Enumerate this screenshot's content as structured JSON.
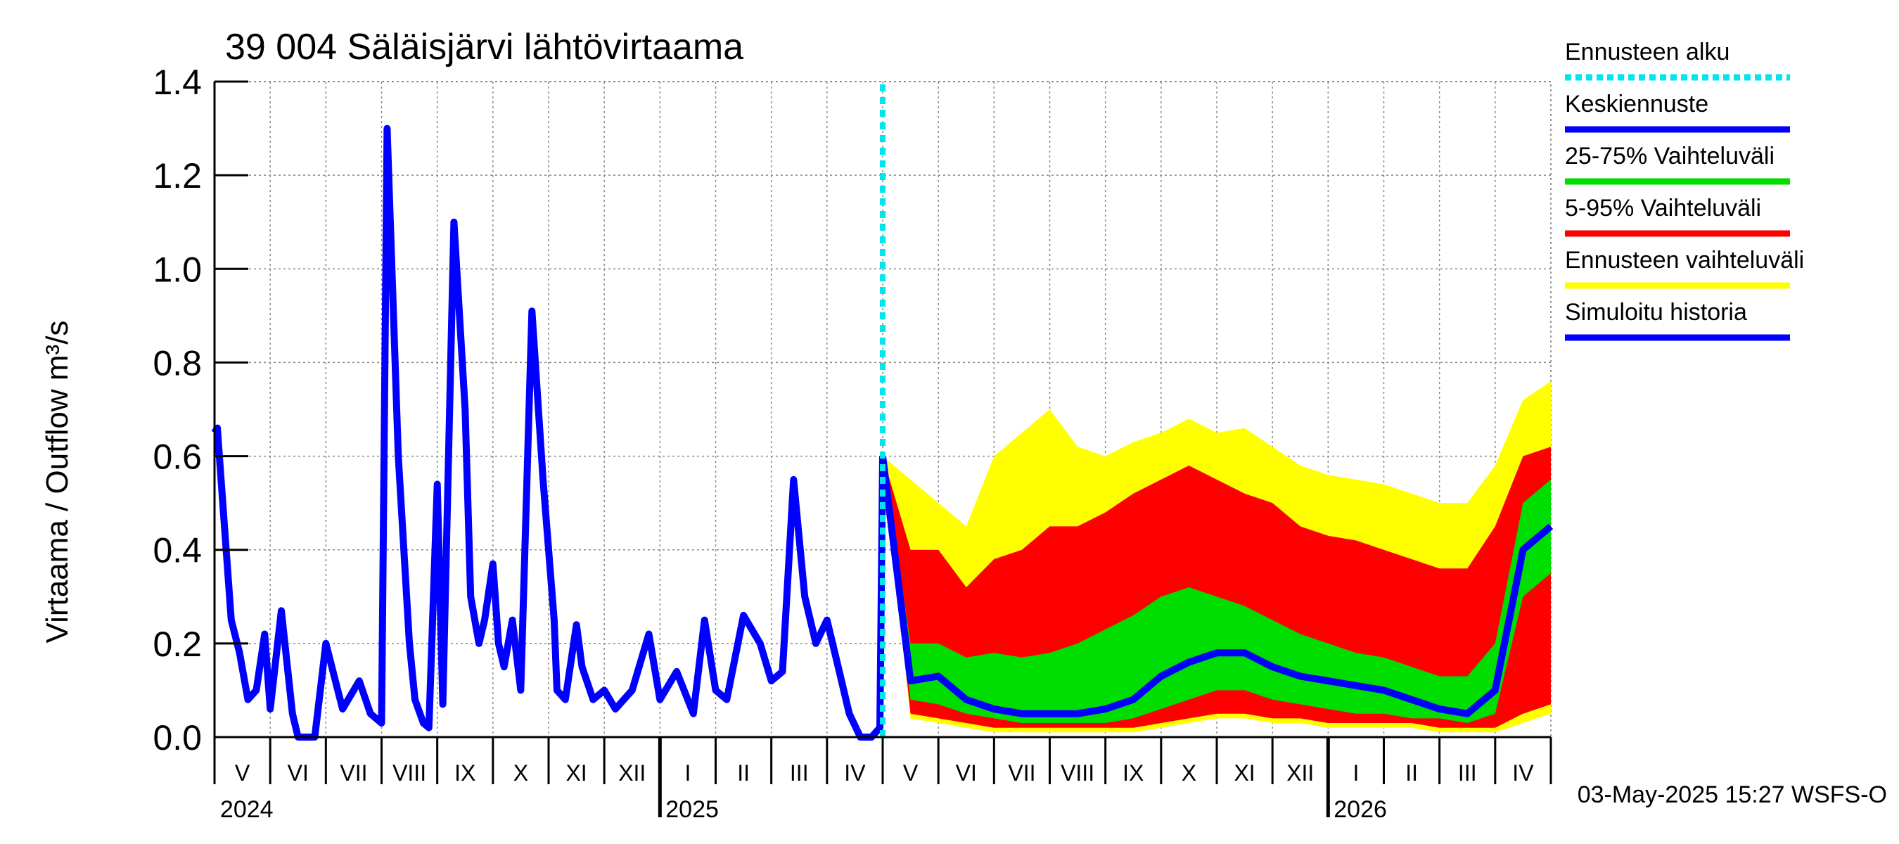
{
  "chart_data": {
    "type": "area",
    "title": "39 004 Säläisjärvi lähtövirtaama",
    "ylabel": "Virtaama / Outflow    m³/s",
    "ylim": [
      0,
      1.4
    ],
    "yticks": [
      "0.0",
      "0.2",
      "0.4",
      "0.6",
      "0.8",
      "1.0",
      "1.2",
      "1.4"
    ],
    "x_months": [
      "V",
      "VI",
      "VII",
      "VIII",
      "IX",
      "X",
      "XI",
      "XII",
      "I",
      "II",
      "III",
      "IV",
      "V",
      "VI",
      "VII",
      "VIII",
      "IX",
      "X",
      "XI",
      "XII",
      "I",
      "II",
      "III",
      "IV"
    ],
    "x_years": [
      "2024",
      "2025",
      "2026"
    ],
    "forecast_start": "2025-05-03",
    "legend": [
      {
        "label": "Ennusteen alku",
        "color": "#00e5ee",
        "style": "dotted"
      },
      {
        "label": "Keskiennuste",
        "color": "#0000ff",
        "style": "solid"
      },
      {
        "label": "25-75% Vaihteluväli",
        "color": "#00dd00",
        "style": "solid"
      },
      {
        "label": "5-95% Vaihteluväli",
        "color": "#ff0000",
        "style": "solid"
      },
      {
        "label": "Ennusteen vaihteluväli",
        "color": "#ffff00",
        "style": "solid"
      },
      {
        "label": "Simuloitu historia",
        "color": "#0000ff",
        "style": "solid"
      }
    ],
    "history": {
      "name": "Simuloitu historia",
      "month_index": [
        0,
        0.05,
        0.3,
        0.45,
        0.6,
        0.75,
        0.9,
        1.0,
        1.2,
        1.4,
        1.5,
        1.65,
        1.8,
        2.0,
        2.3,
        2.6,
        2.8,
        3.0,
        3.1,
        3.3,
        3.5,
        3.6,
        3.75,
        3.85,
        4.0,
        4.1,
        4.3,
        4.5,
        4.6,
        4.75,
        4.85,
        5.0,
        5.1,
        5.2,
        5.35,
        5.5,
        5.7,
        5.9,
        6.1,
        6.15,
        6.3,
        6.5,
        6.6,
        6.8,
        7.0,
        7.2,
        7.5,
        7.8,
        8.0,
        8.3,
        8.6,
        8.8,
        9.0,
        9.2,
        9.5,
        9.8,
        10.0,
        10.2,
        10.4,
        10.6,
        10.8,
        11.0,
        11.2,
        11.4,
        11.6,
        11.8,
        11.95,
        12.0
      ],
      "values": [
        0.65,
        0.66,
        0.25,
        0.18,
        0.08,
        0.1,
        0.22,
        0.06,
        0.27,
        0.05,
        0.0,
        0.0,
        0.0,
        0.2,
        0.06,
        0.12,
        0.05,
        0.03,
        1.3,
        0.6,
        0.2,
        0.08,
        0.03,
        0.02,
        0.54,
        0.07,
        1.1,
        0.7,
        0.3,
        0.2,
        0.25,
        0.37,
        0.2,
        0.15,
        0.25,
        0.1,
        0.91,
        0.55,
        0.25,
        0.1,
        0.08,
        0.24,
        0.15,
        0.08,
        0.1,
        0.06,
        0.1,
        0.22,
        0.08,
        0.14,
        0.05,
        0.25,
        0.1,
        0.08,
        0.26,
        0.2,
        0.12,
        0.14,
        0.55,
        0.3,
        0.2,
        0.25,
        0.15,
        0.05,
        0.0,
        0.0,
        0.02,
        0.6
      ]
    },
    "forecast": {
      "month_index": [
        12.0,
        12.5,
        13.0,
        13.5,
        14.0,
        14.5,
        15.0,
        15.5,
        16.0,
        16.5,
        17.0,
        17.5,
        18.0,
        18.5,
        19.0,
        19.5,
        20.0,
        20.5,
        21.0,
        21.5,
        22.0,
        22.5,
        23.0,
        23.5,
        24.0
      ],
      "median": [
        0.6,
        0.12,
        0.13,
        0.08,
        0.06,
        0.05,
        0.05,
        0.05,
        0.06,
        0.08,
        0.13,
        0.16,
        0.18,
        0.18,
        0.15,
        0.13,
        0.12,
        0.11,
        0.1,
        0.08,
        0.06,
        0.05,
        0.1,
        0.4,
        0.45
      ],
      "p25": [
        0.6,
        0.08,
        0.07,
        0.05,
        0.04,
        0.03,
        0.03,
        0.03,
        0.03,
        0.04,
        0.06,
        0.08,
        0.1,
        0.1,
        0.08,
        0.07,
        0.06,
        0.05,
        0.05,
        0.04,
        0.04,
        0.03,
        0.05,
        0.3,
        0.35
      ],
      "p75": [
        0.6,
        0.2,
        0.2,
        0.17,
        0.18,
        0.17,
        0.18,
        0.2,
        0.23,
        0.26,
        0.3,
        0.32,
        0.3,
        0.28,
        0.25,
        0.22,
        0.2,
        0.18,
        0.17,
        0.15,
        0.13,
        0.13,
        0.2,
        0.5,
        0.55
      ],
      "p5": [
        0.6,
        0.05,
        0.04,
        0.03,
        0.02,
        0.02,
        0.02,
        0.02,
        0.02,
        0.02,
        0.03,
        0.04,
        0.05,
        0.05,
        0.04,
        0.04,
        0.03,
        0.03,
        0.03,
        0.03,
        0.02,
        0.02,
        0.02,
        0.05,
        0.07
      ],
      "p95": [
        0.6,
        0.4,
        0.4,
        0.32,
        0.38,
        0.4,
        0.45,
        0.45,
        0.48,
        0.52,
        0.55,
        0.58,
        0.55,
        0.52,
        0.5,
        0.45,
        0.43,
        0.42,
        0.4,
        0.38,
        0.36,
        0.36,
        0.45,
        0.6,
        0.62
      ],
      "min": [
        0.6,
        0.04,
        0.03,
        0.02,
        0.01,
        0.01,
        0.01,
        0.01,
        0.01,
        0.01,
        0.02,
        0.03,
        0.04,
        0.04,
        0.03,
        0.03,
        0.02,
        0.02,
        0.02,
        0.02,
        0.01,
        0.01,
        0.01,
        0.03,
        0.05
      ],
      "max": [
        0.6,
        0.55,
        0.5,
        0.45,
        0.6,
        0.65,
        0.7,
        0.62,
        0.6,
        0.63,
        0.65,
        0.68,
        0.65,
        0.66,
        0.62,
        0.58,
        0.56,
        0.55,
        0.54,
        0.52,
        0.5,
        0.5,
        0.58,
        0.72,
        0.76
      ]
    }
  },
  "footer": {
    "timestamp": "03-May-2025 15:27 WSFS-O"
  }
}
